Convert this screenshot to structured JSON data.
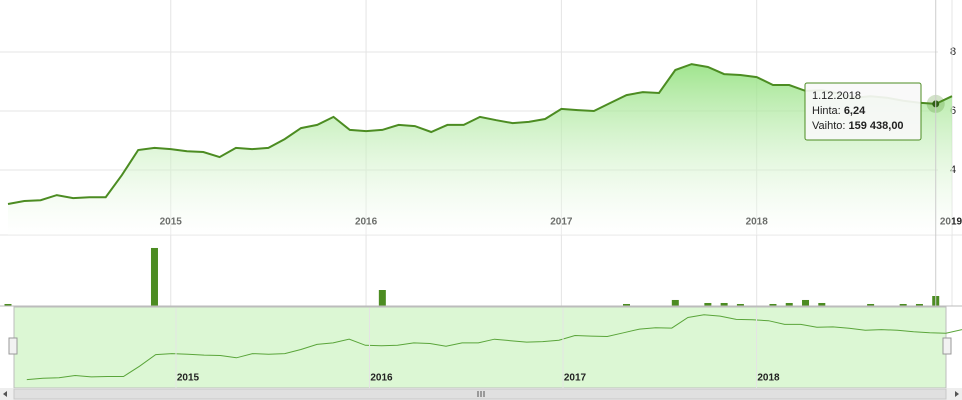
{
  "chart_data": [
    {
      "type": "area",
      "color": "#4c8c22",
      "x": [
        "2014-03-01",
        "2014-04-01",
        "2014-05-01",
        "2014-06-01",
        "2014-07-01",
        "2014-08-01",
        "2014-09-01",
        "2014-10-01",
        "2014-11-01",
        "2014-12-01",
        "2015-01-01",
        "2015-02-01",
        "2015-03-01",
        "2015-04-01",
        "2015-05-01",
        "2015-06-01",
        "2015-07-01",
        "2015-08-01",
        "2015-09-01",
        "2015-10-01",
        "2015-11-01",
        "2015-12-01",
        "2016-01-01",
        "2016-02-01",
        "2016-03-01",
        "2016-04-01",
        "2016-05-01",
        "2016-06-01",
        "2016-07-01",
        "2016-08-01",
        "2016-09-01",
        "2016-10-01",
        "2016-11-01",
        "2016-12-01",
        "2017-01-01",
        "2017-02-01",
        "2017-03-01",
        "2017-04-01",
        "2017-05-01",
        "2017-06-01",
        "2017-07-01",
        "2017-08-01",
        "2017-09-01",
        "2017-10-01",
        "2017-11-01",
        "2017-12-01",
        "2018-01-01",
        "2018-02-01",
        "2018-03-01",
        "2018-04-01",
        "2018-05-01",
        "2018-06-01",
        "2018-07-01",
        "2018-08-01",
        "2018-09-01",
        "2018-10-01",
        "2018-11-01",
        "2018-12-01",
        "2019-01-01"
      ],
      "series": [
        {
          "color": "#4c8c22",
          "values": [
            2.85,
            2.95,
            2.98,
            3.15,
            3.05,
            3.08,
            3.08,
            3.83,
            4.68,
            4.75,
            4.71,
            4.64,
            4.61,
            4.44,
            4.75,
            4.71,
            4.75,
            5.05,
            5.42,
            5.53,
            5.8,
            5.36,
            5.32,
            5.36,
            5.53,
            5.49,
            5.29,
            5.53,
            5.53,
            5.8,
            5.69,
            5.59,
            5.63,
            5.73,
            6.07,
            6.03,
            6.0,
            6.27,
            6.54,
            6.64,
            6.61,
            7.39,
            7.59,
            7.49,
            7.25,
            7.22,
            7.15,
            6.88,
            6.88,
            6.68,
            6.7,
            6.6,
            6.45,
            6.5,
            6.45,
            6.35,
            6.28,
            6.24,
            6.5
          ]
        }
      ],
      "xlim": [
        "2014-03-01",
        "2019-01-01"
      ],
      "xticks": [
        {
          "value": "2015-01-01",
          "label": "2015"
        },
        {
          "value": "2016-01-01",
          "label": "2016"
        },
        {
          "value": "2017-01-01",
          "label": "2017"
        },
        {
          "value": "2018-01-01",
          "label": "2018"
        },
        {
          "value": "2019-01-01",
          "label": "2019"
        }
      ],
      "ylim": [
        1.8,
        9.76
      ],
      "yticks": [
        4,
        6,
        8
      ],
      "grid": true
    },
    {
      "type": "bar",
      "color": "#4c8c22",
      "series": [
        {
          "color": "#4c8c22",
          "values": [
            32000,
            0,
            0,
            0,
            0,
            0,
            0,
            0,
            0,
            925000,
            0,
            0,
            0,
            0,
            0,
            0,
            0,
            0,
            0,
            0,
            0,
            0,
            0,
            255000,
            0,
            0,
            0,
            0,
            0,
            0,
            0,
            0,
            0,
            0,
            0,
            0,
            0,
            0,
            32000,
            0,
            0,
            96000,
            0,
            48000,
            48000,
            32000,
            0,
            32000,
            48000,
            96000,
            48000,
            0,
            0,
            32000,
            0,
            32000,
            32000,
            159438,
            0
          ]
        }
      ],
      "ylim": [
        0,
        1100000
      ]
    }
  ],
  "tooltip": {
    "date": "1.12.2018",
    "rows": [
      {
        "label": "Hinta:",
        "value_label": "6,24"
      },
      {
        "label": "Vaihto:",
        "value_label": "159 438,00"
      }
    ]
  }
}
